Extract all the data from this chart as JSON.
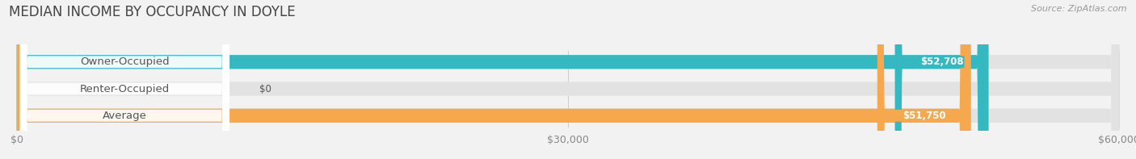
{
  "title": "MEDIAN INCOME BY OCCUPANCY IN DOYLE",
  "source": "Source: ZipAtlas.com",
  "categories": [
    "Owner-Occupied",
    "Renter-Occupied",
    "Average"
  ],
  "values": [
    52708,
    0,
    51750
  ],
  "bar_colors": [
    "#35b8bf",
    "#c9afd4",
    "#f5a84e"
  ],
  "bar_labels": [
    "$52,708",
    "$0",
    "$51,750"
  ],
  "xlim": [
    0,
    60000
  ],
  "xticks": [
    0,
    30000,
    60000
  ],
  "xticklabels": [
    "$0",
    "$30,000",
    "$60,000"
  ],
  "background_color": "#f2f2f2",
  "bar_background_color": "#e2e2e2",
  "title_fontsize": 12,
  "source_fontsize": 8,
  "label_fontsize": 9.5,
  "value_fontsize": 8.5,
  "tick_fontsize": 9,
  "bar_height": 0.52
}
